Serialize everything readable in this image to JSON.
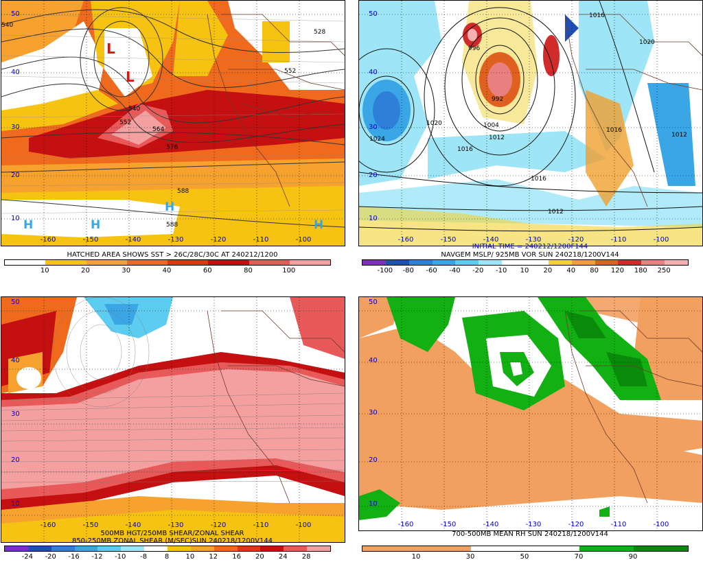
{
  "panels": {
    "p1": {
      "title": "HATCHED AREA SHOWS SST > 26C/28C/30C AT 240212/1200",
      "colorbar_labels": [
        "10",
        "20",
        "30",
        "40",
        "60",
        "80",
        "100"
      ],
      "colors": [
        "#ffffff",
        "#f7c313",
        "#f7a12e",
        "#ef6a1d",
        "#d93a10",
        "#c41010",
        "#e85a5a",
        "#f4a0a0"
      ],
      "lon_labels": [
        "-160",
        "-150",
        "-140",
        "-130",
        "-120",
        "-110",
        "-100"
      ],
      "lat_labels": [
        "50",
        "40",
        "30",
        "20",
        "10"
      ],
      "contour_labels": [
        "540",
        "552",
        "564",
        "576",
        "588",
        "588",
        "528",
        "540",
        "552"
      ],
      "symbols": [
        "L",
        "L",
        "H",
        "H",
        "H",
        "H"
      ]
    },
    "p2": {
      "title_line1": "INITIAL TIME = 240212/1200F144",
      "title_line2": "NAVGEM MSLP/ 925MB VOR SUN 240218/1200V144",
      "colorbar_labels": [
        "-100",
        "-80",
        "-60",
        "-40",
        "-20",
        "-10",
        "10",
        "20",
        "40",
        "80",
        "120",
        "180",
        "250"
      ],
      "colors": [
        "#7a2ccc",
        "#1f4fb5",
        "#2e7fd8",
        "#3aa6e6",
        "#5ccdf0",
        "#9ee6f7",
        "#ffffff",
        "#ffffff",
        "#f2d233",
        "#f0a030",
        "#e06020",
        "#d02a2a",
        "#e88080",
        "#f4b0b0"
      ],
      "lon_labels": [
        "-160",
        "-150",
        "-140",
        "-130",
        "-120",
        "-110",
        "-100"
      ],
      "lat_labels": [
        "50",
        "40",
        "30",
        "20",
        "10"
      ],
      "contour_labels": [
        "1024",
        "1020",
        "1016",
        "1016",
        "1012",
        "1012",
        "1020",
        "1016",
        "1016",
        "1012",
        "996",
        "992",
        "1004"
      ]
    },
    "p3": {
      "title_line1": "500MB HGT/250MB SHEAR/ZONAL SHEAR",
      "title_line2": "850-250MB ZONAL SHEAR (M/SEC)SUN 240218/1200V144",
      "colorbar_labels": [
        "-24",
        "-20",
        "-16",
        "-12",
        "-10",
        "-8",
        "8",
        "10",
        "12",
        "16",
        "20",
        "24",
        "28"
      ],
      "colors": [
        "#7a2ccc",
        "#1f4fb5",
        "#2e7fd8",
        "#3aa6e6",
        "#5ccdf0",
        "#9ee6f7",
        "#ffffff",
        "#f7c313",
        "#f7a12e",
        "#ef6a1d",
        "#d93a10",
        "#c41010",
        "#e85a5a",
        "#f4a0a0"
      ],
      "lon_labels": [
        "-160",
        "-150",
        "-140",
        "-130",
        "-120",
        "-110",
        "-100"
      ],
      "lat_labels": [
        "50",
        "40",
        "30",
        "20",
        "10"
      ]
    },
    "p4": {
      "title": "700-500MB MEAN RH SUN 240218/1200V144",
      "colorbar_labels": [
        "10",
        "30",
        "50",
        "70",
        "90"
      ],
      "colors": [
        "#f2a060",
        "#f2a060",
        "#ffffff",
        "#ffffff",
        "#12b012",
        "#0a8a0a"
      ],
      "lon_labels": [
        "-160",
        "-150",
        "-140",
        "-130",
        "-120",
        "-110",
        "-100"
      ],
      "lat_labels": [
        "50",
        "40",
        "30",
        "20",
        "10"
      ]
    }
  }
}
